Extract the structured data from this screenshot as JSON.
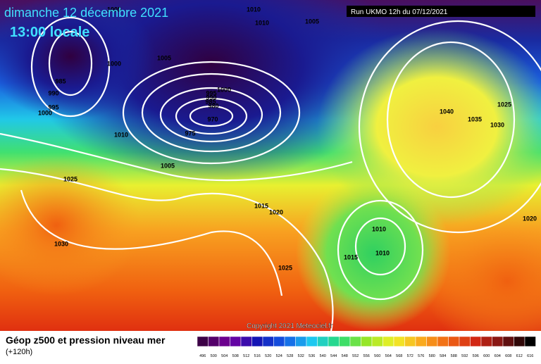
{
  "header": {
    "title": "dimanche 12 décembre 2021",
    "subtitle": "13:00 locale",
    "run": "Run UKMO 12h du 07/12/2021"
  },
  "isobars": [
    "1005",
    "1010",
    "1010",
    "1005",
    "1005",
    "1000",
    "985",
    "990",
    "995",
    "1000",
    "1000",
    "995",
    "990",
    "985",
    "980",
    "970",
    "975",
    "1010",
    "1005",
    "1025",
    "1030",
    "1015",
    "1020",
    "1025",
    "1010",
    "1010",
    "1015",
    "1040",
    "1035",
    "1030",
    "1025",
    "1020"
  ],
  "copyright": "Copyright 2021 Meteociel.fr",
  "legend": {
    "title": "Géop z500 et pression niveau mer",
    "subtitle": "(+120h)",
    "scale": [
      "496",
      "500",
      "504",
      "508",
      "512",
      "516",
      "520",
      "524",
      "528",
      "532",
      "536",
      "540",
      "544",
      "548",
      "552",
      "556",
      "560",
      "564",
      "568",
      "572",
      "576",
      "580",
      "584",
      "588",
      "592",
      "596",
      "600",
      "604",
      "608",
      "612",
      "616"
    ]
  }
}
